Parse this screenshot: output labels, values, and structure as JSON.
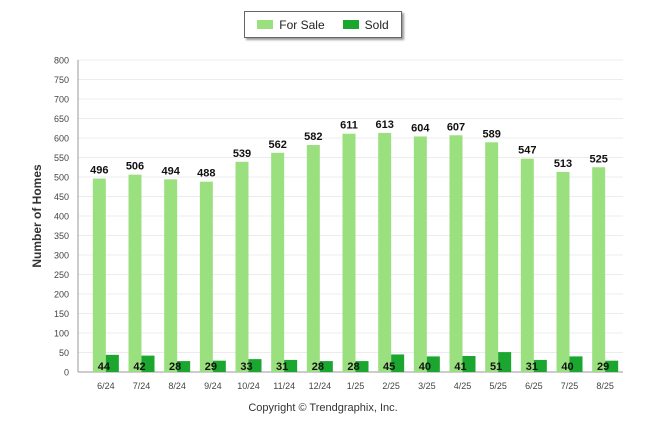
{
  "chart_data": {
    "type": "bar",
    "categories": [
      "6/24",
      "7/24",
      "8/24",
      "9/24",
      "10/24",
      "11/24",
      "12/24",
      "1/25",
      "2/25",
      "3/25",
      "4/25",
      "5/25",
      "6/25",
      "7/25",
      "8/25"
    ],
    "series": [
      {
        "name": "For Sale",
        "color": "#9be07f",
        "values": [
          496,
          506,
          494,
          488,
          539,
          562,
          582,
          611,
          613,
          604,
          607,
          589,
          547,
          513,
          525
        ]
      },
      {
        "name": "Sold",
        "color": "#1aa62f",
        "values": [
          44,
          42,
          28,
          29,
          33,
          31,
          28,
          28,
          45,
          40,
          41,
          51,
          31,
          40,
          29
        ]
      }
    ],
    "ylabel": "Number of Homes",
    "ylim": [
      0,
      800
    ],
    "yticks": [
      0,
      50,
      100,
      150,
      200,
      250,
      300,
      350,
      400,
      450,
      500,
      550,
      600,
      650,
      700,
      750,
      800
    ],
    "grid": true,
    "legend_position": "top-center"
  },
  "footer": {
    "copyright": "Copyright © Trendgraphix, Inc."
  }
}
